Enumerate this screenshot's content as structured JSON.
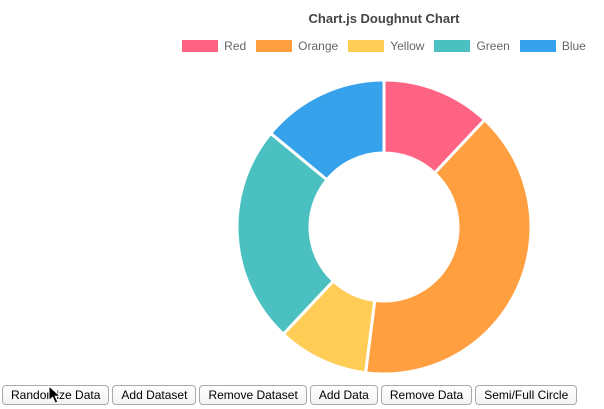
{
  "page": {
    "title": "Chart.js Doughnut Chart"
  },
  "chart_data": {
    "type": "pie",
    "variant": "doughnut",
    "title": "Chart.js Doughnut Chart",
    "labels": [
      "Red",
      "Orange",
      "Yellow",
      "Green",
      "Blue"
    ],
    "values": [
      12,
      40,
      10,
      24,
      14
    ],
    "colors": [
      "#FF6384",
      "#FF9F40",
      "#FFCD56",
      "#4BC0C0",
      "#36A2EB"
    ],
    "legend_position": "top",
    "cutout_percent": 50,
    "rotation_start": "top",
    "direction": "clockwise"
  },
  "toolbar": {
    "buttons": [
      "Randomize Data",
      "Add Dataset",
      "Remove Dataset",
      "Add Data",
      "Remove Data",
      "Semi/Full Circle"
    ]
  }
}
